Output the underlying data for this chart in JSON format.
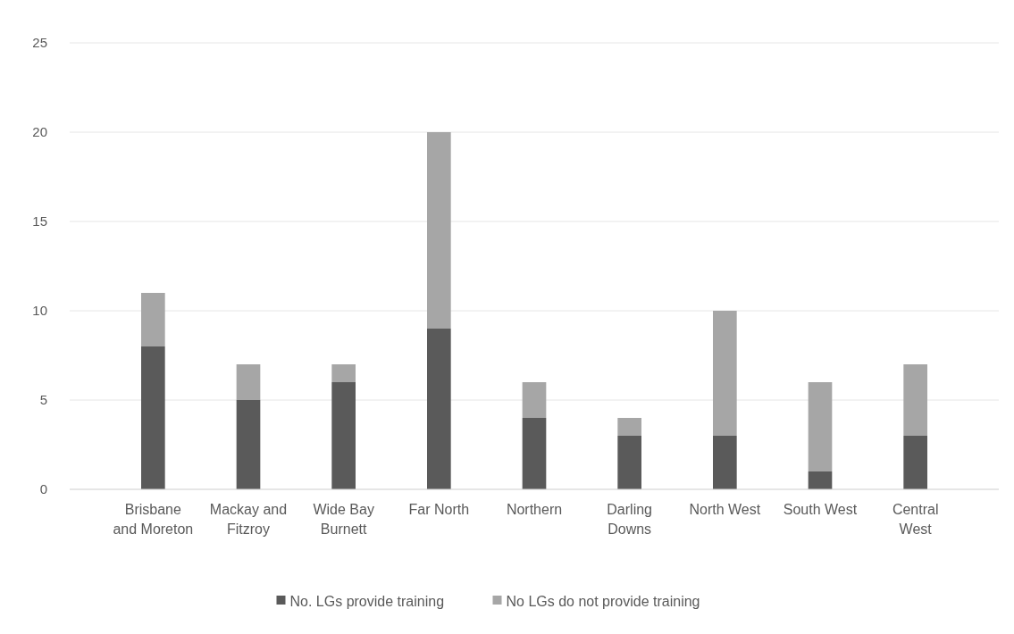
{
  "chart_data": {
    "type": "bar",
    "stacked": true,
    "categories": [
      "Brisbane and Moreton",
      "Mackay and Fitzroy",
      "Wide Bay Burnett",
      "Far North",
      "Northern",
      "Darling Downs",
      "North West",
      "South West",
      "Central West"
    ],
    "series": [
      {
        "name": "No. LGs provide training",
        "color": "#5a5a5a",
        "values": [
          8,
          5,
          6,
          9,
          4,
          3,
          3,
          1,
          3
        ]
      },
      {
        "name": "No LGs do not provide training",
        "color": "#a6a6a6",
        "values": [
          3,
          2,
          1,
          11,
          2,
          1,
          7,
          5,
          4
        ]
      }
    ],
    "ylim": [
      0,
      25
    ],
    "yticks": [
      0,
      5,
      10,
      15,
      20,
      25
    ],
    "grid": "y",
    "legend": "bottom"
  }
}
